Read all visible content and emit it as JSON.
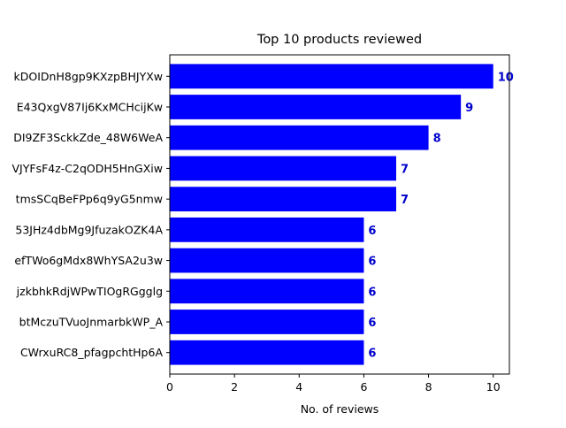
{
  "colors": {
    "bar": "#0000ff",
    "label": "#0000cc",
    "axis": "#000000",
    "background": "#ffffff"
  },
  "chart_data": {
    "type": "bar",
    "orientation": "horizontal",
    "title": "Top 10 products reviewed",
    "xlabel": "No. of reviews",
    "ylabel": "",
    "xlim": [
      0,
      10.5
    ],
    "xticks": [
      0,
      2,
      4,
      6,
      8,
      10
    ],
    "grid": false,
    "categories": [
      "kDOIDnH8gp9KXzpBHJYXw",
      "E43QxgV87Ij6KxMCHcijKw",
      "DI9ZF3SckkZde_48W6WeA",
      "VJYFsF4z-C2qODH5HnGXiw",
      "tmsSCqBeFPp6q9yG5nmw",
      "53JHz4dbMg9JfuzakOZK4A",
      "efTWo6gMdx8WhYSA2u3w",
      "jzkbhkRdjWPwTIOgRGgglg",
      "btMczuTVuoJnmarbkWP_A",
      "CWrxuRC8_pfagpchtHp6A"
    ],
    "values": [
      10,
      9,
      8,
      7,
      7,
      6,
      6,
      6,
      6,
      6
    ]
  }
}
